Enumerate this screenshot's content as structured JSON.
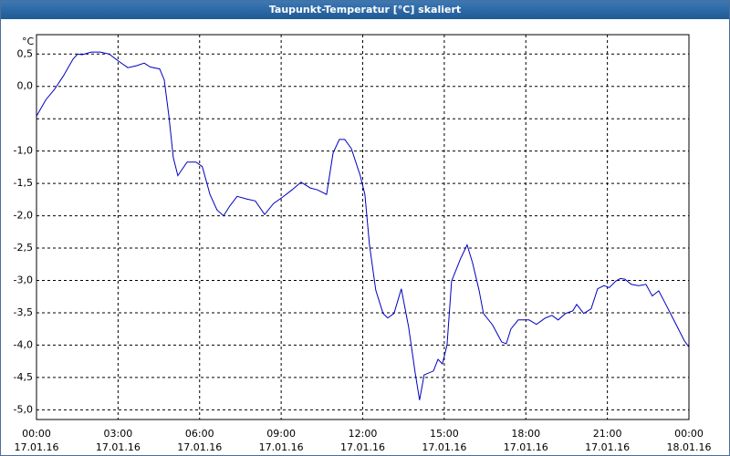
{
  "window_title": "Taupunkt-Temperatur [°C] skaliert",
  "chart_data": {
    "type": "line",
    "y_unit": "°C",
    "x": [
      0,
      0.34,
      0.67,
      1.0,
      1.34,
      1.51,
      1.68,
      2.01,
      2.35,
      2.68,
      3.02,
      3.36,
      3.69,
      3.96,
      4.19,
      4.53,
      4.7,
      4.87,
      5.03,
      5.2,
      5.54,
      5.87,
      6.1,
      6.38,
      6.64,
      6.88,
      7.11,
      7.38,
      7.72,
      8.05,
      8.39,
      8.72,
      9.06,
      9.4,
      9.73,
      10.07,
      10.34,
      10.67,
      10.91,
      11.14,
      11.34,
      11.58,
      11.91,
      12.08,
      12.25,
      12.48,
      12.75,
      12.92,
      13.15,
      13.42,
      13.69,
      13.93,
      14.09,
      14.26,
      14.6,
      14.77,
      14.93,
      15.1,
      15.27,
      15.6,
      15.84,
      16.04,
      16.28,
      16.44,
      16.78,
      17.11,
      17.28,
      17.45,
      17.72,
      18.12,
      18.39,
      18.72,
      18.96,
      19.19,
      19.46,
      19.73,
      19.87,
      20.13,
      20.4,
      20.64,
      20.87,
      21.07,
      21.31,
      21.48,
      21.64,
      21.88,
      22.15,
      22.42,
      22.65,
      22.89,
      23.15,
      23.49,
      23.83,
      24.0
    ],
    "series": [
      {
        "color": "#0000c0",
        "values": [
          -0.46,
          -0.21,
          -0.04,
          0.17,
          0.42,
          0.5,
          0.49,
          0.53,
          0.53,
          0.5,
          0.39,
          0.29,
          0.32,
          0.36,
          0.3,
          0.27,
          0.1,
          -0.46,
          -1.1,
          -1.38,
          -1.17,
          -1.17,
          -1.24,
          -1.67,
          -1.91,
          -2.0,
          -1.85,
          -1.7,
          -1.74,
          -1.77,
          -1.98,
          -1.81,
          -1.71,
          -1.6,
          -1.48,
          -1.57,
          -1.6,
          -1.67,
          -1.03,
          -0.82,
          -0.82,
          -0.96,
          -1.38,
          -1.67,
          -2.45,
          -3.15,
          -3.51,
          -3.58,
          -3.51,
          -3.13,
          -3.72,
          -4.43,
          -4.85,
          -4.46,
          -4.4,
          -4.22,
          -4.29,
          -4.0,
          -3.01,
          -2.66,
          -2.45,
          -2.73,
          -3.15,
          -3.51,
          -3.69,
          -3.95,
          -3.98,
          -3.75,
          -3.61,
          -3.61,
          -3.68,
          -3.58,
          -3.54,
          -3.61,
          -3.51,
          -3.47,
          -3.37,
          -3.51,
          -3.44,
          -3.13,
          -3.08,
          -3.11,
          -3.01,
          -2.97,
          -2.98,
          -3.06,
          -3.08,
          -3.06,
          -3.24,
          -3.16,
          -3.37,
          -3.65,
          -3.93,
          -4.03
        ]
      }
    ],
    "xlim": [
      0,
      24
    ],
    "xticks": [
      {
        "value": 0,
        "label": "00:00"
      },
      {
        "value": 3,
        "label": "03:00"
      },
      {
        "value": 6,
        "label": "06:00"
      },
      {
        "value": 9,
        "label": "09:00"
      },
      {
        "value": 12,
        "label": "12:00"
      },
      {
        "value": 15,
        "label": "15:00"
      },
      {
        "value": 18,
        "label": "18:00"
      },
      {
        "value": 21,
        "label": "21:00"
      },
      {
        "value": 24,
        "label": "00:00"
      }
    ],
    "xtick_dates": [
      "17.01.16",
      "17.01.16",
      "17.01.16",
      "17.01.16",
      "17.01.16",
      "17.01.16",
      "17.01.16",
      "17.01.16",
      "18.01.16"
    ],
    "ylim": [
      -5.15,
      0.8
    ],
    "yticks": [
      {
        "value": 0.5,
        "label": "0,5"
      },
      {
        "value": 0,
        "label": "0,0"
      },
      {
        "value": -0.5,
        "label": null
      },
      {
        "value": -1,
        "label": "-1,0"
      },
      {
        "value": -1.5,
        "label": "-1,5"
      },
      {
        "value": -2,
        "label": "-2,0"
      },
      {
        "value": -2.5,
        "label": "-2,5"
      },
      {
        "value": -3,
        "label": "-3,0"
      },
      {
        "value": -3.5,
        "label": "-3,5"
      },
      {
        "value": -4,
        "label": "-4,0"
      },
      {
        "value": -4.5,
        "label": "-4,5"
      },
      {
        "value": -5,
        "label": "-5,0"
      }
    ],
    "grid": true
  }
}
